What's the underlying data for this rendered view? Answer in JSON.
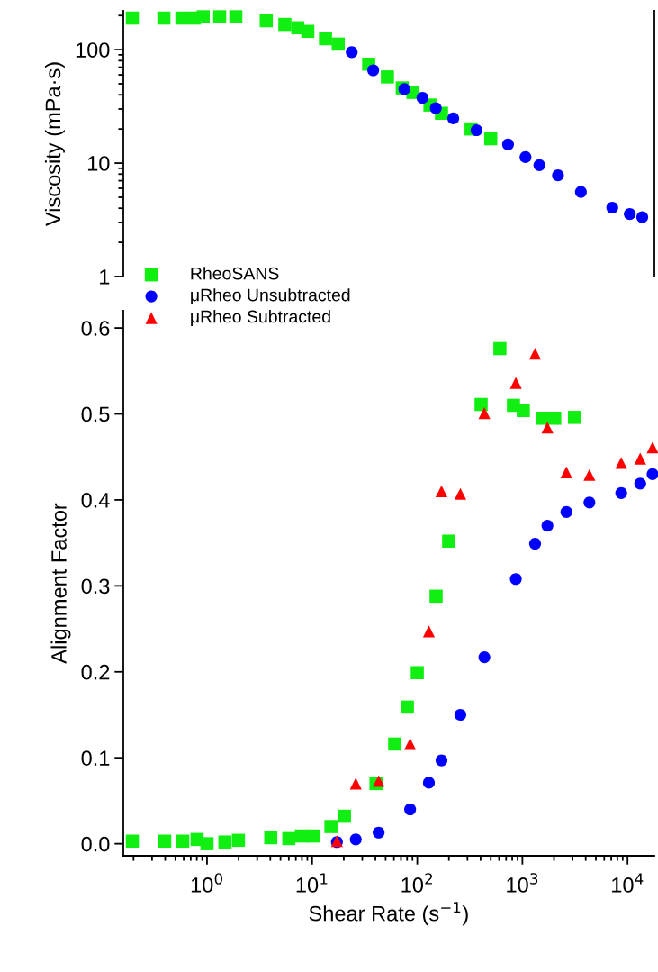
{
  "chart_data": [
    {
      "type": "scatter",
      "ylabel": "Viscosity (mPa·s)",
      "log": "xy",
      "xlim": [
        0.16,
        18000
      ],
      "ylim": [
        1,
        220
      ],
      "yticks": [
        1,
        10,
        100
      ],
      "tick_labels": "y",
      "grid": false,
      "legend": false,
      "series": [
        {
          "color": "#11ee11",
          "marker": "square",
          "x": [
            0.195,
            0.389,
            0.577,
            0.76,
            0.92,
            1.32,
            1.88,
            3.66,
            5.5,
            7.3,
            9.1,
            13.4,
            17.7,
            34.5,
            52,
            72,
            91,
            132,
            170,
            325,
            500
          ],
          "values": [
            190,
            190,
            190,
            190,
            195,
            195,
            195,
            180,
            167,
            156,
            145,
            125,
            112,
            74.5,
            57.5,
            46,
            42,
            32.5,
            27.5,
            20,
            16.4
          ]
        },
        {
          "color": "#0000ff",
          "marker": "circle",
          "x": [
            23.8,
            38.1,
            75.3,
            112,
            150,
            220,
            366,
            730,
            1070,
            1450,
            2180,
            3600,
            7160,
            10500,
            13800
          ],
          "values": [
            95,
            65.8,
            44.9,
            37.7,
            30.5,
            24.8,
            19.5,
            14.6,
            11.3,
            9.6,
            7.8,
            5.57,
            4.05,
            3.56,
            3.34
          ]
        }
      ]
    },
    {
      "type": "scatter",
      "xlabel": "Shear Rate (s$^{−1}$)",
      "ylabel": "Alignment Factor",
      "log": "x",
      "xlim": [
        0.16,
        18000
      ],
      "xticks": [
        {
          "value": 1,
          "label": "10$^{0}$"
        },
        {
          "value": 10,
          "label": "10$^{1}$"
        },
        {
          "value": 100,
          "label": "10$^{2}$"
        },
        {
          "value": 1000,
          "label": "10$^{3}$"
        },
        {
          "value": 10000,
          "label": "10$^{4}$"
        }
      ],
      "ylim": [
        -0.014,
        0.62
      ],
      "yticks": [
        {
          "value": 0,
          "label": "0.0"
        },
        {
          "value": 0.1,
          "label": "0.1"
        },
        {
          "value": 0.2,
          "label": "0.2"
        },
        {
          "value": 0.3,
          "label": "0.3"
        },
        {
          "value": 0.4,
          "label": "0.4"
        },
        {
          "value": 0.5,
          "label": "0.5"
        },
        {
          "value": 0.6,
          "label": "0.6"
        }
      ],
      "grid": false,
      "legend": "top left",
      "series": [
        {
          "name": "RheoSANS",
          "color": "#11ee11",
          "marker": "square",
          "x": [
            0.195,
            0.396,
            0.587,
            0.805,
            1.0,
            1.48,
            1.99,
            4.04,
            6.0,
            7.9,
            10.2,
            15.1,
            20.3,
            40.5,
            61,
            80.5,
            100,
            151,
            199,
            405,
            611,
            822,
            1020,
            1540,
            2030,
            3130
          ],
          "values": [
            0.003,
            0.003,
            0.003,
            0.005,
            0.0,
            0.002,
            0.004,
            0.007,
            0.006,
            0.009,
            0.009,
            0.02,
            0.032,
            0.07,
            0.116,
            0.159,
            0.199,
            0.288,
            0.352,
            0.511,
            0.576,
            0.51,
            0.504,
            0.495,
            0.495,
            0.496
          ]
        },
        {
          "name": "μRheo Unsubtracted",
          "color": "#0000ff",
          "marker": "circle",
          "x": [
            17.2,
            26,
            42.9,
            85.5,
            129,
            170,
            257,
            435,
            866,
            1320,
            1730,
            2620,
            4340,
            8710,
            13200,
            17300
          ],
          "values": [
            0.002,
            0.005,
            0.013,
            0.04,
            0.071,
            0.097,
            0.15,
            0.217,
            0.308,
            0.349,
            0.37,
            0.386,
            0.397,
            0.408,
            0.419,
            0.43
          ]
        },
        {
          "name": "μRheo Subtracted",
          "color": "#ff0000",
          "marker": "triangle",
          "x": [
            17.2,
            26,
            42.9,
            85.5,
            129,
            170,
            257,
            435,
            866,
            1320,
            1730,
            2620,
            4340,
            8710,
            13200,
            17300
          ],
          "values": [
            0.003,
            0.07,
            0.073,
            0.116,
            0.247,
            0.41,
            0.407,
            0.501,
            0.536,
            0.57,
            0.484,
            0.432,
            0.429,
            0.443,
            0.448,
            0.461
          ]
        }
      ]
    }
  ]
}
